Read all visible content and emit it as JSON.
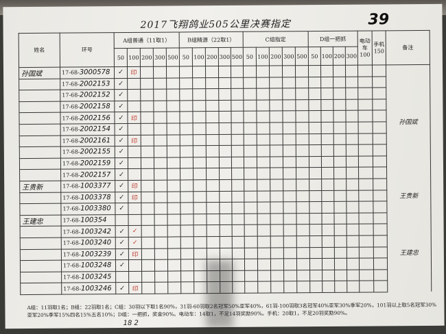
{
  "page_number": "39",
  "title": "2017飞翔鸽业505公里决赛指定",
  "headers": {
    "name": "姓名",
    "ring": "环号",
    "group_a": "A组普通（11取1）",
    "group_b": "B组精源（22取1）",
    "group_c": "C组指定",
    "group_d": "D组一把抓",
    "ebike": "电动车100",
    "phone": "手机150",
    "remark": "备注",
    "a_cols": [
      "50",
      "100",
      "200",
      "300",
      "500"
    ],
    "b_cols": [
      "50",
      "100",
      "200",
      "300",
      "500"
    ],
    "c_cols": [
      "50",
      "100",
      "200",
      "300",
      "500"
    ],
    "d_cols": [
      "50",
      "100",
      "200",
      "300"
    ]
  },
  "rows": [
    {
      "name": "孙国斌",
      "prefix": "17-68-",
      "ring": "3000578",
      "a50": "✓",
      "a100": "印"
    },
    {
      "name": "",
      "prefix": "17-68-",
      "ring": "2002153",
      "a50": "✓",
      "a100": ""
    },
    {
      "name": "",
      "prefix": "17-68-",
      "ring": "2002152",
      "a50": "✓",
      "a100": ""
    },
    {
      "name": "",
      "prefix": "17-68-",
      "ring": "2002158",
      "a50": "✓",
      "a100": ""
    },
    {
      "name": "",
      "prefix": "17-68-",
      "ring": "2002156",
      "a50": "✓",
      "a100": "印"
    },
    {
      "name": "",
      "prefix": "17-68-",
      "ring": "2002154",
      "a50": "✓",
      "a100": ""
    },
    {
      "name": "",
      "prefix": "17-68-",
      "ring": "2002161",
      "a50": "✓",
      "a100": "印"
    },
    {
      "name": "",
      "prefix": "17-68-",
      "ring": "2002155",
      "a50": "✓",
      "a100": ""
    },
    {
      "name": "",
      "prefix": "17-68-",
      "ring": "2002159",
      "a50": "✓",
      "a100": ""
    },
    {
      "name": "",
      "prefix": "17-68-",
      "ring": "2002157",
      "a50": "✓",
      "a100": ""
    },
    {
      "name": "王贵新",
      "prefix": "17-68-",
      "ring": "1003377",
      "a50": "✓",
      "a100": "印"
    },
    {
      "name": "",
      "prefix": "17-68-",
      "ring": "1003378",
      "a50": "✓",
      "a100": "印"
    },
    {
      "name": "",
      "prefix": "17-68-",
      "ring": "1003380",
      "a50": "✓",
      "a100": ""
    },
    {
      "name": "王建忠",
      "prefix": "17-68-",
      "ring": "100354",
      "a50": "",
      "a100": ""
    },
    {
      "name": "",
      "prefix": "17-68-",
      "ring": "1003242",
      "a50": "✓",
      "a100": "✓"
    },
    {
      "name": "",
      "prefix": "17-68-",
      "ring": "1003240",
      "a50": "✓",
      "a100": "✓"
    },
    {
      "name": "",
      "prefix": "17-68-",
      "ring": "1003239",
      "a50": "✓",
      "a100": "印"
    },
    {
      "name": "",
      "prefix": "17-68-",
      "ring": "1003248",
      "a50": "✓",
      "a100": ""
    },
    {
      "name": "",
      "prefix": "17-68-",
      "ring": "1003245",
      "a50": "",
      "a100": ""
    },
    {
      "name": "",
      "prefix": "17-68-",
      "ring": "1003246",
      "a50": "✓",
      "a100": "印"
    }
  ],
  "remarks": [
    "孙国斌",
    "王贵新",
    "王建忠"
  ],
  "footer": "A组：11羽取1名；B组：22羽取1名；C组：30羽以下取1名90%，31羽-60羽取2名冠军50%亚军40%，61羽-100羽取3名冠军40%亚军30%季军20%，101羽以上取5名冠军30%亚军20%季军15%四名15%五名10%；D组：一把抓，奖金90%。电动车：14取1，不足14羽奖励90%。手机：20取1，不足20羽奖励90%。",
  "signature": "18 2"
}
